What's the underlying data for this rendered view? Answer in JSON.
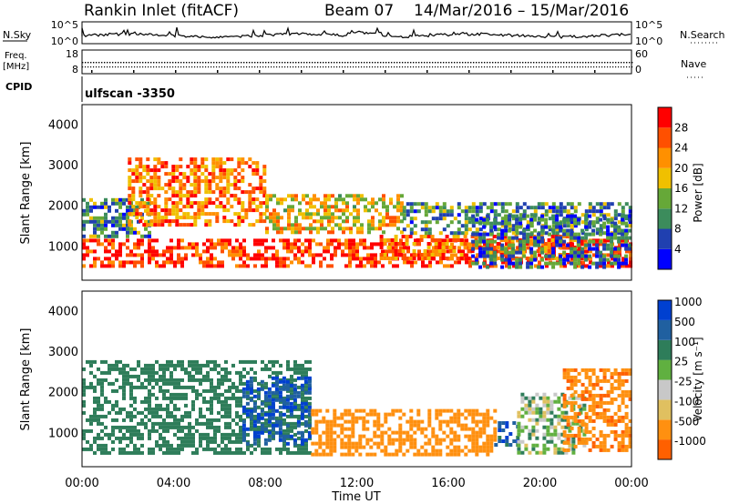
{
  "header": {
    "station": "Rankin Inlet (fitACF)",
    "beam": "Beam 07",
    "dates": "14/Mar/2016 – 15/Mar/2016"
  },
  "panels": {
    "nsky": {
      "label": "N.Sky",
      "ticks": [
        "10^5",
        "10^0"
      ],
      "right_ticks": [
        "10^5",
        "10^0"
      ],
      "right_label": "N.Search"
    },
    "freq": {
      "label_line1": "Freq.",
      "label_line2": "[MHz]",
      "ticks": [
        "18",
        "8"
      ],
      "right_ticks": [
        "60",
        "0"
      ],
      "right_label": "Nave"
    },
    "cpid": {
      "label": "CPID",
      "value": "ulfscan -3350"
    }
  },
  "colors": {
    "power_scale": [
      "#0000ff",
      "#2040b0",
      "#3c8c5c",
      "#66a838",
      "#f0c000",
      "#ff9000",
      "#ff5000",
      "#ff0000"
    ],
    "velocity_scale": [
      "#0040d0",
      "#2060a0",
      "#2e7d5a",
      "#60b040",
      "#c8c8c8",
      "#e0c060",
      "#ff9010",
      "#ff6000",
      "#ff0000"
    ]
  },
  "chart_data": [
    {
      "type": "heatmap",
      "name": "power",
      "ylabel": "Slant Range [km]",
      "ylim": [
        180,
        4500
      ],
      "yticks": [
        "1000",
        "2000",
        "3000",
        "4000"
      ],
      "colorbar": {
        "label": "Power [dB]",
        "ticks": [
          "4",
          "8",
          "12",
          "16",
          "20",
          "24",
          "28"
        ],
        "range": [
          0,
          30
        ]
      },
      "regions": [
        {
          "t0": 0,
          "t1": 24,
          "r0": 500,
          "r1": 1200,
          "v": 26
        },
        {
          "t0": 0,
          "t1": 3,
          "r0": 1300,
          "r1": 2200,
          "v": 10
        },
        {
          "t0": 2,
          "t1": 8,
          "r0": 1500,
          "r1": 3200,
          "v": 22
        },
        {
          "t0": 8,
          "t1": 14,
          "r0": 1400,
          "r1": 2300,
          "v": 18
        },
        {
          "t0": 13,
          "t1": 22,
          "r0": 700,
          "r1": 1300,
          "v": 23
        },
        {
          "t0": 14,
          "t1": 24,
          "r0": 1300,
          "r1": 2100,
          "v": 10
        },
        {
          "t0": 17,
          "t1": 24,
          "r0": 500,
          "r1": 1800,
          "v": 8
        }
      ]
    },
    {
      "type": "heatmap",
      "name": "velocity",
      "ylabel": "Slant Range [km]",
      "ylim": [
        180,
        4500
      ],
      "yticks": [
        "1000",
        "2000",
        "3000",
        "4000"
      ],
      "xlabel": "Time UT",
      "xticks": [
        "00:00",
        "04:00",
        "08:00",
        "12:00",
        "16:00",
        "20:00",
        "00:00"
      ],
      "xlim": [
        0,
        24
      ],
      "colorbar": {
        "label": "Velocity [m s⁻¹]",
        "ticks": [
          "1000",
          "500",
          "100",
          "25",
          "-25",
          "-100",
          "-500",
          "-1000"
        ],
        "range": [
          -1200,
          1200
        ]
      },
      "regions": [
        {
          "t0": 0,
          "t1": 10,
          "r0": 500,
          "r1": 2800,
          "v": 300
        },
        {
          "t0": 7,
          "t1": 10,
          "r0": 700,
          "r1": 2400,
          "v": 900
        },
        {
          "t0": 10,
          "t1": 18,
          "r0": 500,
          "r1": 1600,
          "v": -300
        },
        {
          "t0": 18,
          "t1": 19,
          "r0": 700,
          "r1": 1300,
          "v": 900
        },
        {
          "t0": 19,
          "t1": 22,
          "r0": 500,
          "r1": 2000,
          "v": 40
        },
        {
          "t0": 21,
          "t1": 24,
          "r0": 600,
          "r1": 2600,
          "v": -400
        }
      ]
    }
  ]
}
